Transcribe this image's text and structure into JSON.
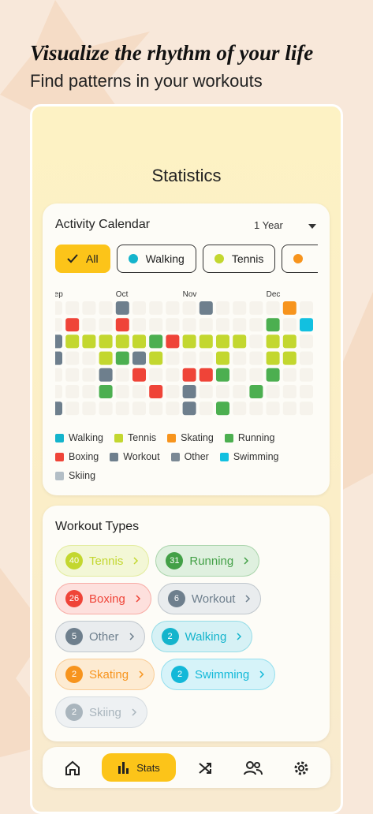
{
  "header": {
    "title": "Visualize the rhythm of your life",
    "subtitle": "Find patterns in your workouts"
  },
  "screen_title": "Statistics",
  "calendar": {
    "title": "Activity Calendar",
    "range": "1 Year",
    "filters": [
      "All",
      "Walking",
      "Tennis"
    ],
    "months": [
      {
        "label": "Sep",
        "week": 0
      },
      {
        "label": "Oct",
        "week": 4
      },
      {
        "label": "Nov",
        "week": 8
      },
      {
        "label": "Dec",
        "week": 13
      }
    ],
    "legend": [
      {
        "name": "Walking",
        "color": "#14b4cc"
      },
      {
        "name": "Tennis",
        "color": "#c3d72f"
      },
      {
        "name": "Skating",
        "color": "#f7941d"
      },
      {
        "name": "Running",
        "color": "#4caf50"
      },
      {
        "name": "Boxing",
        "color": "#ef4438"
      },
      {
        "name": "Workout",
        "color": "#6e7f8d"
      },
      {
        "name": "Other",
        "color": "#7a8894"
      },
      {
        "name": "Swimming",
        "color": "#12c0e0"
      },
      {
        "name": "Skiing",
        "color": "#b3bec6"
      }
    ],
    "weeks": [
      [
        null,
        null,
        5,
        5,
        null,
        null,
        5
      ],
      [
        null,
        4,
        1,
        null,
        null,
        null,
        null
      ],
      [
        null,
        null,
        1,
        null,
        null,
        null,
        null
      ],
      [
        null,
        null,
        1,
        1,
        5,
        3,
        null
      ],
      [
        5,
        4,
        1,
        3,
        null,
        null,
        null
      ],
      [
        null,
        null,
        1,
        5,
        4,
        null,
        null
      ],
      [
        null,
        null,
        3,
        1,
        null,
        4,
        null
      ],
      [
        null,
        null,
        4,
        null,
        null,
        null,
        null
      ],
      [
        null,
        null,
        1,
        null,
        4,
        5,
        5
      ],
      [
        5,
        null,
        1,
        null,
        4,
        null,
        null
      ],
      [
        null,
        null,
        1,
        1,
        3,
        null,
        3
      ],
      [
        null,
        null,
        1,
        null,
        null,
        null,
        null
      ],
      [
        null,
        null,
        null,
        null,
        null,
        3,
        null
      ],
      [
        null,
        3,
        1,
        1,
        3,
        null,
        null
      ],
      [
        2,
        null,
        1,
        1,
        null,
        null,
        null
      ],
      [
        null,
        7,
        null,
        null,
        null,
        null,
        null
      ]
    ]
  },
  "workout_types": {
    "title": "Workout Types",
    "items": [
      {
        "name": "Tennis",
        "count": 40,
        "color": "#c3d72f",
        "bg": "#f3f7d6"
      },
      {
        "name": "Running",
        "count": 31,
        "color": "#43a047",
        "bg": "#dff0df"
      },
      {
        "name": "Boxing",
        "count": 26,
        "color": "#ef4438",
        "bg": "#fde0dd"
      },
      {
        "name": "Workout",
        "count": 6,
        "color": "#6e7f8d",
        "bg": "#e9ecee"
      },
      {
        "name": "Other",
        "count": 5,
        "color": "#6e7f8d",
        "bg": "#e9ecee"
      },
      {
        "name": "Walking",
        "count": 2,
        "color": "#14b4cc",
        "bg": "#d6f1f5"
      },
      {
        "name": "Skating",
        "count": 2,
        "color": "#f7941d",
        "bg": "#fdebd2"
      },
      {
        "name": "Swimming",
        "count": 2,
        "color": "#12b8d8",
        "bg": "#d6f3f9"
      },
      {
        "name": "Skiing",
        "count": 2,
        "color": "#a9b5bd",
        "bg": "#eef1f3"
      }
    ]
  },
  "nav": {
    "active": "Stats"
  }
}
